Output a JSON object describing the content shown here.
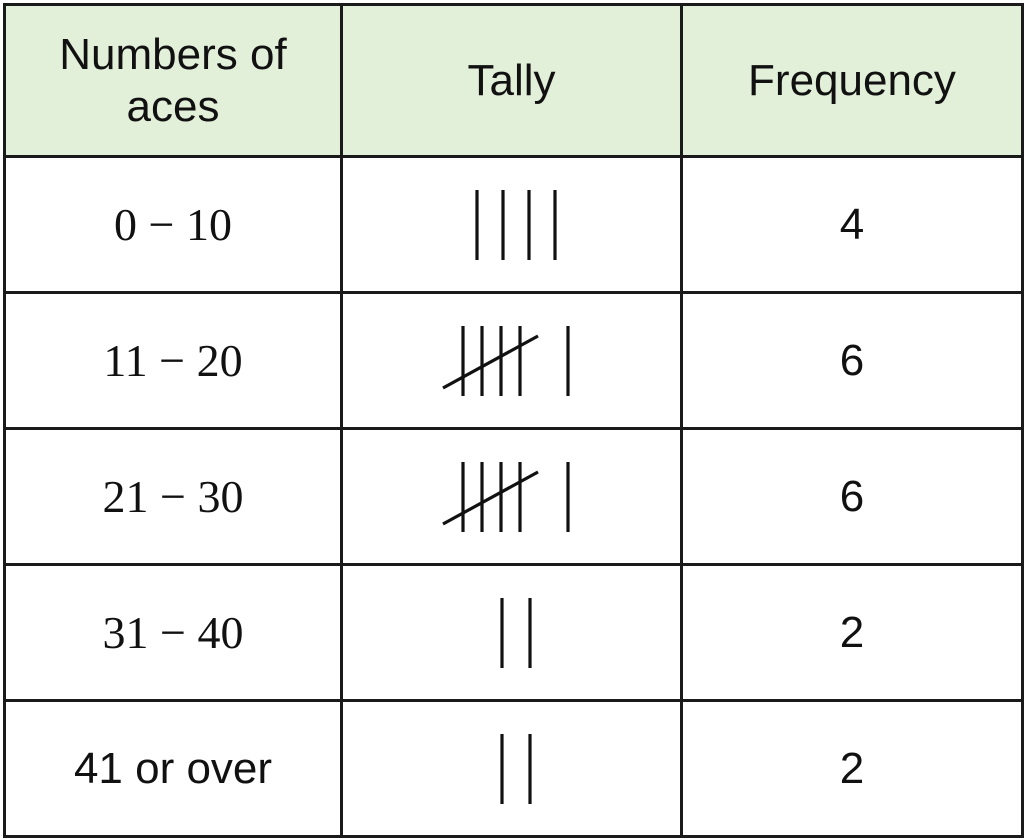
{
  "table": {
    "headers": {
      "range_line1": "Numbers of",
      "range_line2": "aces",
      "tally": "Tally",
      "frequency": "Frequency"
    },
    "rows": [
      {
        "range": "0 − 10",
        "range_style": "math",
        "tally": 4,
        "frequency": "4"
      },
      {
        "range": "11 − 20",
        "range_style": "math",
        "tally": 6,
        "frequency": "6"
      },
      {
        "range": "21 − 30",
        "range_style": "math",
        "tally": 6,
        "frequency": "6"
      },
      {
        "range": "31 − 40",
        "range_style": "math",
        "tally": 2,
        "frequency": "2"
      },
      {
        "range": "41 or over",
        "range_style": "text",
        "tally": 2,
        "frequency": "2"
      }
    ]
  },
  "colors": {
    "header_background": "#e2efd9",
    "border": "#1a1a1a"
  }
}
